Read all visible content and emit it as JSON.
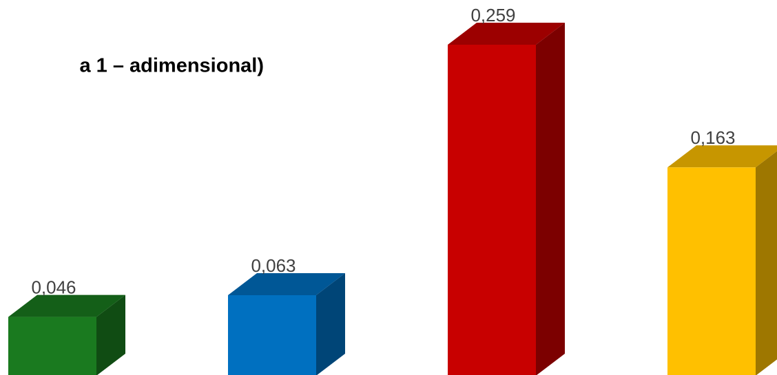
{
  "chart_data": {
    "type": "bar3d",
    "title": "a 1 – adimensional)",
    "categories": [
      null,
      null,
      null,
      null
    ],
    "values": [
      0.046,
      0.063,
      0.259,
      0.163
    ],
    "value_labels": [
      "0,046",
      "0,063",
      "0,259",
      "0,163"
    ],
    "colors": [
      "#1a7a1f",
      "#0070c0",
      "#c80000",
      "#ffc000"
    ]
  }
}
